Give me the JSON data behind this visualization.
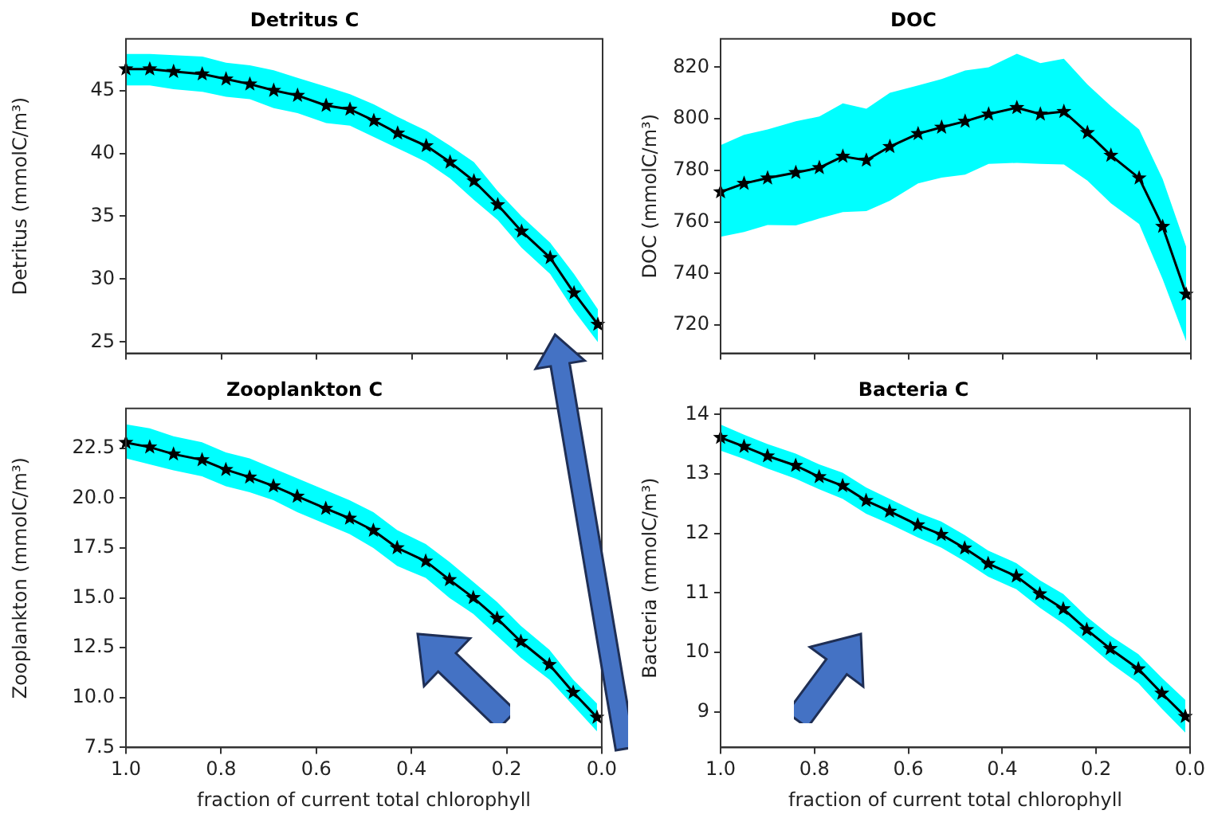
{
  "chart_data": [
    {
      "type": "line",
      "title": "Detritus C",
      "ylabel": "Detritus (mmolC/m³)",
      "marker": "star",
      "tick_labels": "y",
      "xlim": [
        1.0,
        0.0
      ],
      "xticks": [
        {
          "value": 1,
          "label": null
        },
        {
          "value": 0.8,
          "label": null
        },
        {
          "value": 0.6,
          "label": null
        },
        {
          "value": 0.4,
          "label": null
        },
        {
          "value": 0.2,
          "label": null
        },
        {
          "value": 0,
          "label": null
        }
      ],
      "ylim": [
        24.1,
        49.1
      ],
      "yticks": [
        25,
        30,
        35,
        40,
        45
      ],
      "x": [
        1.0,
        0.95,
        0.9,
        0.84,
        0.79,
        0.74,
        0.69,
        0.64,
        0.58,
        0.53,
        0.48,
        0.43,
        0.37,
        0.32,
        0.27,
        0.22,
        0.17,
        0.11,
        0.06,
        0.01
      ],
      "series": [
        {
          "color": "#000000",
          "values": [
            46.7,
            46.7,
            46.5,
            46.3,
            45.9,
            45.5,
            45.0,
            44.6,
            43.8,
            43.5,
            42.6,
            41.6,
            40.6,
            39.3,
            37.8,
            35.9,
            33.8,
            31.7,
            28.9,
            26.4
          ],
          "upper": [
            47.9,
            47.9,
            47.8,
            47.7,
            47.2,
            47.0,
            46.6,
            46.0,
            45.3,
            44.7,
            43.9,
            42.9,
            41.8,
            40.6,
            39.3,
            37.0,
            35.0,
            32.9,
            30.4,
            27.6
          ],
          "lower": [
            45.4,
            45.4,
            45.1,
            44.9,
            44.5,
            44.3,
            43.6,
            43.2,
            42.4,
            42.2,
            41.3,
            40.4,
            39.3,
            38.0,
            36.3,
            34.7,
            32.5,
            30.4,
            27.5,
            25.0
          ]
        }
      ]
    },
    {
      "type": "line",
      "title": "DOC",
      "ylabel": "DOC (mmolC/m³)",
      "marker": "star",
      "tick_labels": "y",
      "xlim": [
        1.0,
        0.0
      ],
      "xticks": [
        {
          "value": 1,
          "label": null
        },
        {
          "value": 0.8,
          "label": null
        },
        {
          "value": 0.6,
          "label": null
        },
        {
          "value": 0.4,
          "label": null
        },
        {
          "value": 0.2,
          "label": null
        },
        {
          "value": 0,
          "label": null
        }
      ],
      "ylim": [
        709,
        831
      ],
      "yticks": [
        720,
        740,
        760,
        780,
        800,
        820
      ],
      "x": [
        1.0,
        0.95,
        0.9,
        0.84,
        0.79,
        0.74,
        0.69,
        0.64,
        0.58,
        0.53,
        0.48,
        0.43,
        0.37,
        0.32,
        0.27,
        0.22,
        0.17,
        0.11,
        0.06,
        0.01
      ],
      "series": [
        {
          "color": "#000000",
          "values": [
            771.6,
            774.9,
            777.0,
            779.1,
            781.0,
            785.4,
            783.9,
            789.2,
            794.2,
            796.7,
            799.0,
            801.8,
            804.3,
            801.8,
            802.8,
            794.6,
            785.8,
            777.0,
            758.2,
            731.9
          ],
          "upper": [
            789.8,
            793.8,
            795.9,
            799.0,
            800.9,
            806.0,
            803.9,
            810.1,
            812.9,
            815.4,
            818.7,
            820.0,
            825.2,
            821.6,
            823.3,
            813.3,
            804.9,
            795.9,
            776.6,
            750.4
          ],
          "lower": [
            754.2,
            756.1,
            758.8,
            758.6,
            761.3,
            763.8,
            764.2,
            768.2,
            774.9,
            777.2,
            778.3,
            782.5,
            782.9,
            782.5,
            782.3,
            776.0,
            767.2,
            759.2,
            737.8,
            713.7
          ]
        }
      ]
    },
    {
      "type": "line",
      "title": "Zooplankton C",
      "xlabel": "fraction of current total chlorophyll",
      "ylabel": "Zooplankton (mmolC/m³)",
      "marker": "star",
      "xlim": [
        1.0,
        0.0
      ],
      "xticks": [
        {
          "value": 1,
          "label": "1.0"
        },
        {
          "value": 0.8,
          "label": "0.8"
        },
        {
          "value": 0.6,
          "label": "0.6"
        },
        {
          "value": 0.4,
          "label": "0.4"
        },
        {
          "value": 0.2,
          "label": "0.2"
        },
        {
          "value": 0,
          "label": "0.0"
        }
      ],
      "ylim": [
        7.5,
        24.5
      ],
      "yticks": [
        7.5,
        {
          "value": 10,
          "label": "10.0"
        },
        12.5,
        {
          "value": 15,
          "label": "15.0"
        },
        17.5,
        {
          "value": 20,
          "label": "20.0"
        },
        22.5
      ],
      "x": [
        1.0,
        0.95,
        0.9,
        0.84,
        0.79,
        0.74,
        0.69,
        0.64,
        0.58,
        0.53,
        0.48,
        0.43,
        0.37,
        0.32,
        0.27,
        0.22,
        0.17,
        0.11,
        0.06,
        0.01
      ],
      "series": [
        {
          "color": "#000000",
          "values": [
            22.79,
            22.56,
            22.21,
            21.92,
            21.43,
            21.05,
            20.61,
            20.09,
            19.48,
            18.99,
            18.38,
            17.51,
            16.84,
            15.91,
            15.01,
            13.97,
            12.81,
            11.65,
            10.26,
            9.01
          ],
          "upper": [
            23.7,
            23.5,
            23.1,
            22.8,
            22.3,
            22.0,
            21.5,
            21.0,
            20.4,
            19.9,
            19.3,
            18.4,
            17.7,
            16.8,
            15.8,
            14.8,
            13.6,
            12.4,
            10.9,
            9.7
          ],
          "lower": [
            22.0,
            21.7,
            21.4,
            21.1,
            20.6,
            20.3,
            19.9,
            19.3,
            18.7,
            18.2,
            17.5,
            16.6,
            16.0,
            15.0,
            14.2,
            13.1,
            12.0,
            10.9,
            9.6,
            8.3
          ]
        }
      ]
    },
    {
      "type": "line",
      "title": "Bacteria C",
      "xlabel": "fraction of current total chlorophyll",
      "ylabel": "Bacteria (mmolC/m³)",
      "marker": "star",
      "xlim": [
        1.0,
        0.0
      ],
      "xticks": [
        {
          "value": 1,
          "label": "1.0"
        },
        {
          "value": 0.8,
          "label": "0.8"
        },
        {
          "value": 0.6,
          "label": "0.6"
        },
        {
          "value": 0.4,
          "label": "0.4"
        },
        {
          "value": 0.2,
          "label": "0.2"
        },
        {
          "value": 0,
          "label": "0.0"
        }
      ],
      "ylim": [
        8.4,
        14.1
      ],
      "yticks": [
        9,
        10,
        11,
        12,
        13,
        14
      ],
      "x": [
        1.0,
        0.95,
        0.9,
        0.84,
        0.79,
        0.74,
        0.69,
        0.64,
        0.58,
        0.53,
        0.48,
        0.43,
        0.37,
        0.32,
        0.27,
        0.22,
        0.17,
        0.11,
        0.06,
        0.01
      ],
      "series": [
        {
          "color": "#000000",
          "values": [
            13.61,
            13.46,
            13.3,
            13.14,
            12.95,
            12.8,
            12.55,
            12.37,
            12.14,
            11.98,
            11.75,
            11.49,
            11.28,
            10.98,
            10.73,
            10.38,
            10.06,
            9.72,
            9.31,
            8.92
          ],
          "upper": [
            13.83,
            13.66,
            13.5,
            13.34,
            13.16,
            13.02,
            12.77,
            12.58,
            12.35,
            12.2,
            11.97,
            11.71,
            11.5,
            11.21,
            10.98,
            10.6,
            10.28,
            9.97,
            9.57,
            9.2
          ],
          "lower": [
            13.39,
            13.25,
            13.09,
            12.92,
            12.74,
            12.58,
            12.33,
            12.16,
            11.93,
            11.76,
            11.53,
            11.27,
            11.06,
            10.75,
            10.48,
            10.16,
            9.82,
            9.48,
            9.05,
            8.65
          ]
        }
      ]
    }
  ]
}
